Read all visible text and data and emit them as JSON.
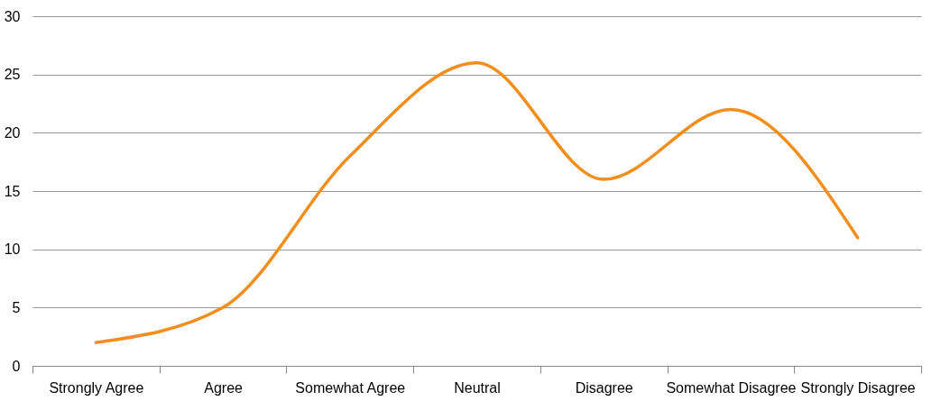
{
  "chart_data": {
    "type": "line",
    "categories": [
      "Strongly Agree",
      "Agree",
      "Somewhat Agree",
      "Neutral",
      "Disagree",
      "Somewhat Disagree",
      "Strongly Disagree"
    ],
    "series": [
      {
        "color": "#f28e1c",
        "values": [
          2,
          5,
          18,
          26,
          16,
          22,
          11
        ]
      }
    ],
    "ylim": [
      0,
      30
    ],
    "yticks": [
      0,
      5,
      10,
      15,
      20,
      25,
      30
    ],
    "grid": "y",
    "marker": "none",
    "line_style": "solid"
  }
}
